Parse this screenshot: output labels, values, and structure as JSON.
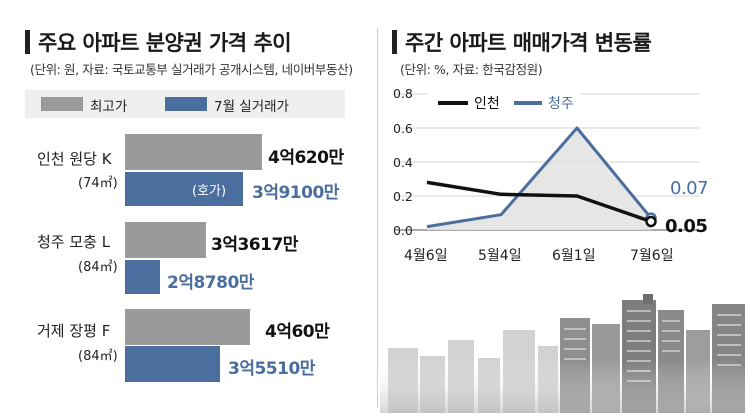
{
  "left": {
    "title": "주요 아파트 분양권 가격 추이",
    "source": "(단위: 원, 자료: 국토교통부 실거래가 공개시스템, 네이버부동산)",
    "legend": [
      "최고가",
      "7월 실거래가"
    ],
    "colors": {
      "max": "#9a9a9a",
      "july": "#4a6f9e"
    }
  },
  "right": {
    "title": "주간 아파트 매매가격 변동률",
    "source": "(단위: %, 자료: 한국감정원)",
    "legend": [
      "인천",
      "청주"
    ],
    "colors": {
      "incheon": "#111111",
      "cheongju": "#4a6f9e"
    }
  },
  "chart_data": [
    {
      "type": "bar",
      "title": "주요 아파트 분양권 가격 추이",
      "subtitle": "(단위: 원, 자료: 국토교통부 실거래가 공개시스템, 네이버부동산)",
      "categories": [
        {
          "name": "인천 원당 K",
          "sub": "(74㎡)"
        },
        {
          "name": "청주 모충 L",
          "sub": "(84㎡)"
        },
        {
          "name": "거제 장평 F",
          "sub": "(84㎡)"
        }
      ],
      "series": [
        {
          "name": "최고가",
          "values": [
            40620,
            33617,
            40060
          ],
          "labels": [
            "4억620만",
            "3억3617만",
            "4억60만"
          ]
        },
        {
          "name": "7월 실거래가",
          "values": [
            39100,
            28780,
            35510
          ],
          "labels": [
            "3억9100만",
            "2억8780만",
            "3억5510만"
          ],
          "notes": [
            "(호가)",
            "",
            ""
          ]
        }
      ]
    },
    {
      "type": "line",
      "title": "주간 아파트 매매가격 변동률",
      "subtitle": "(단위: %, 자료: 한국감정원)",
      "x": [
        "4월6일",
        "5월4일",
        "6월1일",
        "7월6일"
      ],
      "yticks": [
        "0.0",
        "0.2",
        "0.4",
        "0.6",
        "0.8"
      ],
      "ylim": [
        0,
        0.8
      ],
      "series": [
        {
          "name": "인천",
          "values": [
            0.28,
            0.21,
            0.2,
            0.05
          ],
          "end_label": "0.05"
        },
        {
          "name": "청주",
          "values": [
            0.02,
            0.09,
            0.6,
            0.07
          ],
          "end_label": "0.07"
        }
      ]
    }
  ]
}
